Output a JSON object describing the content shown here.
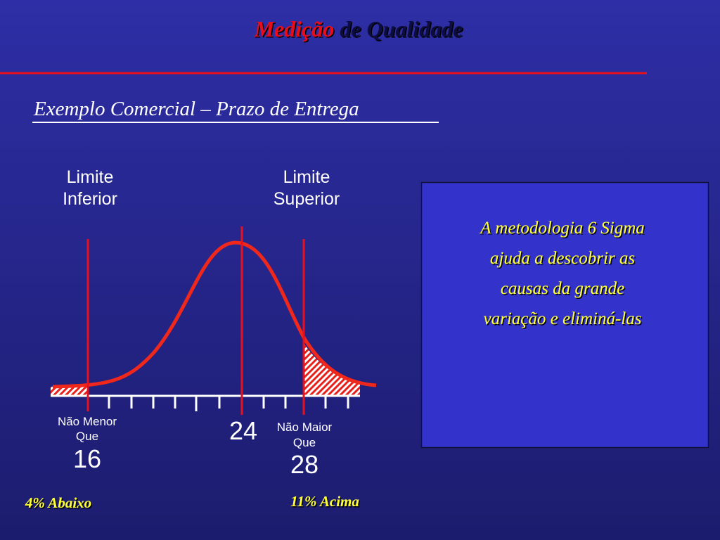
{
  "title": {
    "highlight": "Medição",
    "rest": "de Qualidade"
  },
  "subtitle": "Exemplo Comercial – Prazo de Entrega",
  "lower_limit": {
    "label": [
      "Limite",
      "Inferior"
    ],
    "caption": [
      "Não Menor",
      "Que"
    ],
    "value": "16",
    "note": "4% Abaixo"
  },
  "center": {
    "value": "24"
  },
  "upper_limit": {
    "label": [
      "Limite",
      "Superior"
    ],
    "caption": [
      "Não Maior",
      "Que"
    ],
    "value": "28",
    "note": "11% Acima"
  },
  "box": {
    "lines": [
      "A metodologia    6 Sigma",
      "ajuda a descobrir as",
      "causas da grande",
      "variação e eliminá-las"
    ]
  }
}
